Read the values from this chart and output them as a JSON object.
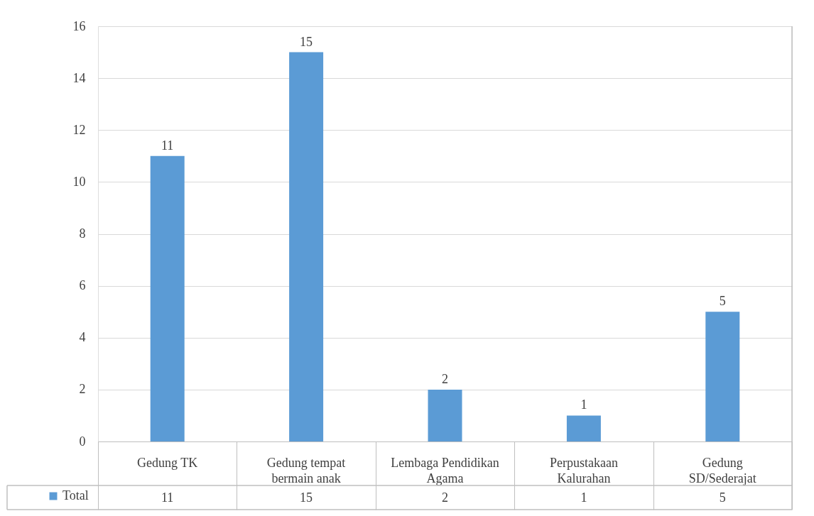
{
  "chart_data": {
    "type": "bar",
    "categories": [
      "Gedung TK",
      "Gedung tempat bermain anak",
      "Lembaga Pendidikan Agama",
      "Perpustakaan Kalurahan",
      "Gedung SD/Sederajat"
    ],
    "series": [
      {
        "name": "Total",
        "color": "#5b9bd5",
        "values": [
          11,
          15,
          2,
          1,
          5
        ],
        "value_labels": [
          "11",
          "15",
          "2",
          "1",
          "5"
        ]
      }
    ],
    "ylim": [
      0,
      16
    ],
    "yticks": [
      0,
      2,
      4,
      6,
      8,
      10,
      12,
      14,
      16
    ],
    "grid": "y",
    "data_labels": true,
    "legend": "bottom left"
  }
}
